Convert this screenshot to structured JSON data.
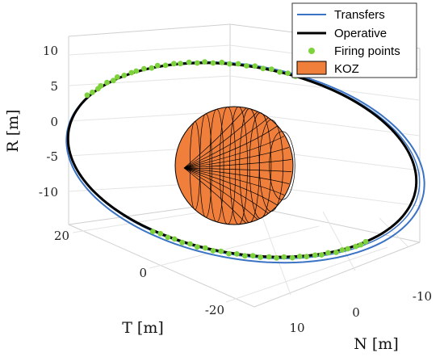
{
  "chart_data": {
    "type": "3d-orbit",
    "axes": {
      "x": {
        "label": "N [m]",
        "ticks": [
          10,
          0,
          -10
        ]
      },
      "y": {
        "label": "T [m]",
        "ticks": [
          20,
          0,
          -20
        ]
      },
      "z": {
        "label": "R [m]",
        "ticks": [
          10,
          5,
          0,
          -5,
          -10
        ]
      }
    },
    "legend": {
      "placement": "top-right",
      "entries": [
        {
          "key": "transfers",
          "label": "Transfers",
          "color": "#3b73c4",
          "marker": "line"
        },
        {
          "key": "operative",
          "label": "Operative",
          "color": "#000000",
          "marker": "thick-line"
        },
        {
          "key": "firing",
          "label": "Firing points",
          "color": "#7ed23c",
          "marker": "dot"
        },
        {
          "key": "koz",
          "label": "KOZ",
          "color": "#f07f3c",
          "marker": "patch"
        }
      ]
    },
    "koz": {
      "shape": "sphere",
      "color": "#f07f3c"
    },
    "firing_point_count_visible": 60
  }
}
